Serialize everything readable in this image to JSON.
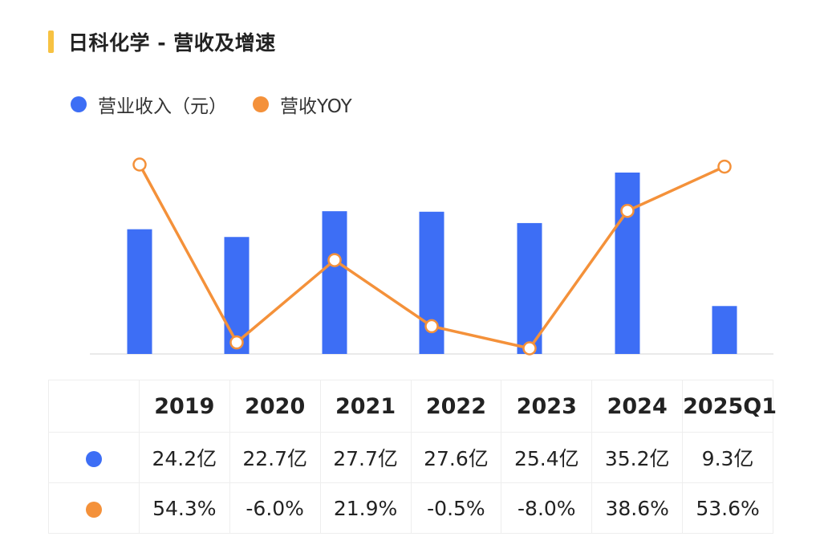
{
  "title": "日科化学 - 营收及增速",
  "colors": {
    "bar": "#3d6ef5",
    "line": "#f4913a",
    "accent": "#f7c242"
  },
  "legend": [
    {
      "label": "营业收入（元）",
      "color": "#3d6ef5"
    },
    {
      "label": "营收YOY",
      "color": "#f4913a"
    }
  ],
  "chart_data": {
    "type": "bar+line",
    "categories": [
      "2019",
      "2020",
      "2021",
      "2022",
      "2023",
      "2024",
      "2025Q1"
    ],
    "series": [
      {
        "name": "营业收入（元）",
        "type": "bar",
        "values": [
          24.2,
          22.7,
          27.7,
          27.6,
          25.4,
          35.2,
          9.3
        ],
        "unit": "亿"
      },
      {
        "name": "营收YOY",
        "type": "line",
        "values": [
          54.3,
          -6.0,
          21.9,
          -0.5,
          -8.0,
          38.6,
          53.6
        ],
        "unit": "%"
      }
    ],
    "grid": false,
    "legend_position": "top-left"
  },
  "table": {
    "headers": [
      "2019",
      "2020",
      "2021",
      "2022",
      "2023",
      "2024",
      "2025Q1"
    ],
    "revenue_row": [
      "24.2亿",
      "22.7亿",
      "27.7亿",
      "27.6亿",
      "25.4亿",
      "35.2亿",
      "9.3亿"
    ],
    "yoy_row": [
      "54.3%",
      "-6.0%",
      "21.9%",
      "-0.5%",
      "-8.0%",
      "38.6%",
      "53.6%"
    ]
  }
}
